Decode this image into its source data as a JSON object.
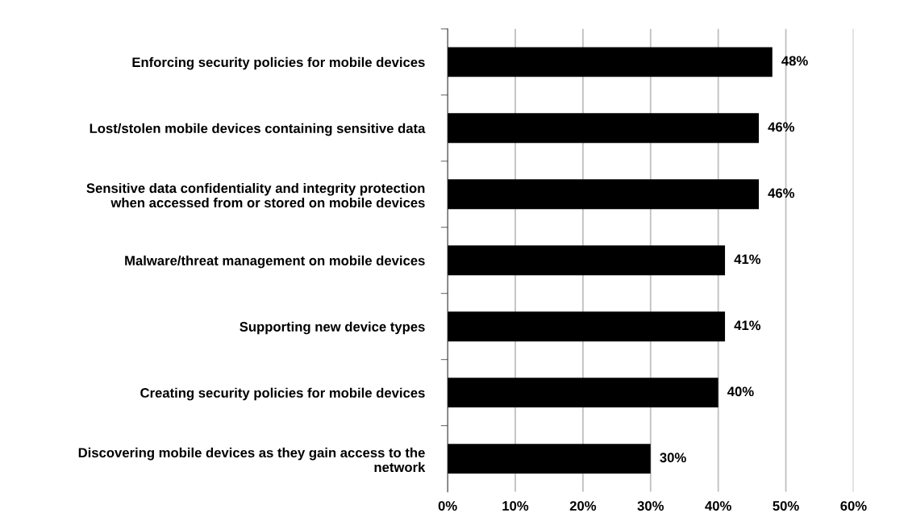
{
  "chart_data": {
    "type": "bar",
    "orientation": "horizontal",
    "categories": [
      "Enforcing security policies for mobile devices",
      "Lost/stolen mobile devices containing sensitive data",
      "Sensitive data confidentiality and integrity protection\nwhen accessed from or stored on mobile devices",
      "Malware/threat management on mobile devices",
      "Supporting new device types",
      "Creating security policies for mobile devices",
      "Discovering mobile devices as they gain access to the\nnetwork"
    ],
    "values": [
      48,
      46,
      46,
      41,
      41,
      40,
      30
    ],
    "value_labels": [
      "48%",
      "46%",
      "46%",
      "41%",
      "41%",
      "40%",
      "30%"
    ],
    "color": "#000000",
    "xlim": [
      0,
      60
    ],
    "xticks": [
      {
        "value": 0,
        "label": "0%"
      },
      {
        "value": 10,
        "label": "10%"
      },
      {
        "value": 20,
        "label": "20%"
      },
      {
        "value": 30,
        "label": "30%"
      },
      {
        "value": 40,
        "label": "40%"
      },
      {
        "value": 50,
        "label": "50%"
      },
      {
        "value": 60,
        "label": "60%"
      }
    ],
    "grid": "x",
    "legend": false
  }
}
